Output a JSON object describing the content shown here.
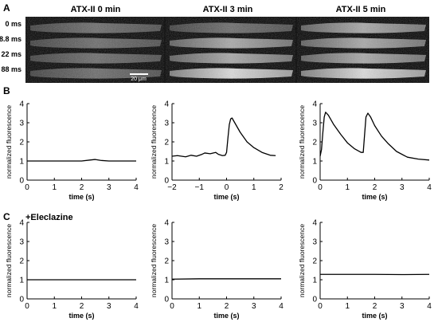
{
  "panel_labels": [
    "A",
    "B",
    "C"
  ],
  "panel_a": {
    "conditions": [
      "ATX-II 0 min",
      "ATX-II 3 min",
      "ATX-II 5 min"
    ],
    "times": [
      "0 ms",
      "8.8 ms",
      "22 ms",
      "88 ms"
    ],
    "scale_bar": "20 μm"
  },
  "panel_c_label": "+Eleclazine",
  "axis_text": {
    "ylabel": "normalized fluorescence",
    "xlabel": "time (s)"
  },
  "chart_data": [
    {
      "id": "B1",
      "type": "line",
      "xlim": [
        0,
        4
      ],
      "ylim": [
        0,
        4
      ],
      "xticks": [
        0,
        1,
        2,
        3,
        4
      ],
      "yticks": [
        0,
        1,
        2,
        3,
        4
      ],
      "xlabel": "time (s)",
      "ylabel": "normalized fluorescence",
      "series": [
        {
          "x": [
            0,
            0.5,
            1,
            1.5,
            2,
            2.3,
            2.5,
            2.7,
            3,
            3.5,
            4
          ],
          "y": [
            1.0,
            1.0,
            1.0,
            1.0,
            1.0,
            1.05,
            1.08,
            1.03,
            1.0,
            1.0,
            1.0
          ]
        }
      ]
    },
    {
      "id": "B2",
      "type": "line",
      "xlim": [
        -2,
        2
      ],
      "ylim": [
        0,
        4
      ],
      "xticks": [
        -2,
        -1,
        0,
        1,
        2
      ],
      "yticks": [
        0,
        1,
        2,
        3,
        4
      ],
      "xlabel": "time (s)",
      "ylabel": "normalized fluorescence",
      "series": [
        {
          "x": [
            -2,
            -1.8,
            -1.5,
            -1.3,
            -1.1,
            -0.9,
            -0.8,
            -0.6,
            -0.4,
            -0.3,
            -0.15,
            -0.05,
            0.0,
            0.05,
            0.1,
            0.15,
            0.2,
            0.3,
            0.5,
            0.75,
            1.0,
            1.3,
            1.6,
            1.8
          ],
          "y": [
            1.25,
            1.28,
            1.22,
            1.3,
            1.25,
            1.35,
            1.42,
            1.38,
            1.45,
            1.35,
            1.28,
            1.3,
            1.45,
            2.2,
            2.9,
            3.2,
            3.25,
            3.0,
            2.5,
            2.0,
            1.7,
            1.45,
            1.3,
            1.28
          ]
        }
      ]
    },
    {
      "id": "B3",
      "type": "line",
      "xlim": [
        0,
        4
      ],
      "ylim": [
        0,
        4
      ],
      "xticks": [
        0,
        1,
        2,
        3,
        4
      ],
      "yticks": [
        0,
        1,
        2,
        3,
        4
      ],
      "xlabel": "time (s)",
      "ylabel": "normalized fluorescence",
      "series": [
        {
          "x": [
            0,
            0.05,
            0.1,
            0.15,
            0.2,
            0.3,
            0.5,
            0.75,
            1.0,
            1.25,
            1.5,
            1.58,
            1.62,
            1.68,
            1.75,
            1.85,
            2.0,
            2.25,
            2.5,
            2.8,
            3.2,
            3.6,
            4
          ],
          "y": [
            1.25,
            1.6,
            2.5,
            3.3,
            3.55,
            3.4,
            2.9,
            2.4,
            1.95,
            1.65,
            1.45,
            1.45,
            2.2,
            3.3,
            3.5,
            3.3,
            2.85,
            2.3,
            1.9,
            1.5,
            1.2,
            1.1,
            1.05
          ]
        }
      ]
    },
    {
      "id": "C1",
      "type": "line",
      "xlim": [
        0,
        4
      ],
      "ylim": [
        0,
        4
      ],
      "xticks": [
        0,
        1,
        2,
        3,
        4
      ],
      "yticks": [
        0,
        1,
        2,
        3,
        4
      ],
      "xlabel": "time (s)",
      "ylabel": "normalized fluorescence",
      "series": [
        {
          "x": [
            0,
            1,
            2,
            3,
            4
          ],
          "y": [
            1.0,
            1.0,
            1.0,
            1.0,
            1.0
          ]
        }
      ]
    },
    {
      "id": "C2",
      "type": "line",
      "xlim": [
        0,
        4
      ],
      "ylim": [
        0,
        4
      ],
      "xticks": [
        0,
        1,
        2,
        3,
        4
      ],
      "yticks": [
        0,
        1,
        2,
        3,
        4
      ],
      "xlabel": "time (s)",
      "ylabel": "normalized fluorescence",
      "series": [
        {
          "x": [
            0,
            1,
            2,
            3,
            4
          ],
          "y": [
            1.03,
            1.05,
            1.05,
            1.05,
            1.05
          ]
        }
      ]
    },
    {
      "id": "C3",
      "type": "line",
      "xlim": [
        0,
        4
      ],
      "ylim": [
        0,
        4
      ],
      "xticks": [
        0,
        1,
        2,
        3,
        4
      ],
      "yticks": [
        0,
        1,
        2,
        3,
        4
      ],
      "xlabel": "time (s)",
      "ylabel": "normalized fluorescence",
      "series": [
        {
          "x": [
            0,
            1,
            2,
            3,
            4
          ],
          "y": [
            1.28,
            1.28,
            1.28,
            1.27,
            1.28
          ]
        }
      ]
    }
  ]
}
